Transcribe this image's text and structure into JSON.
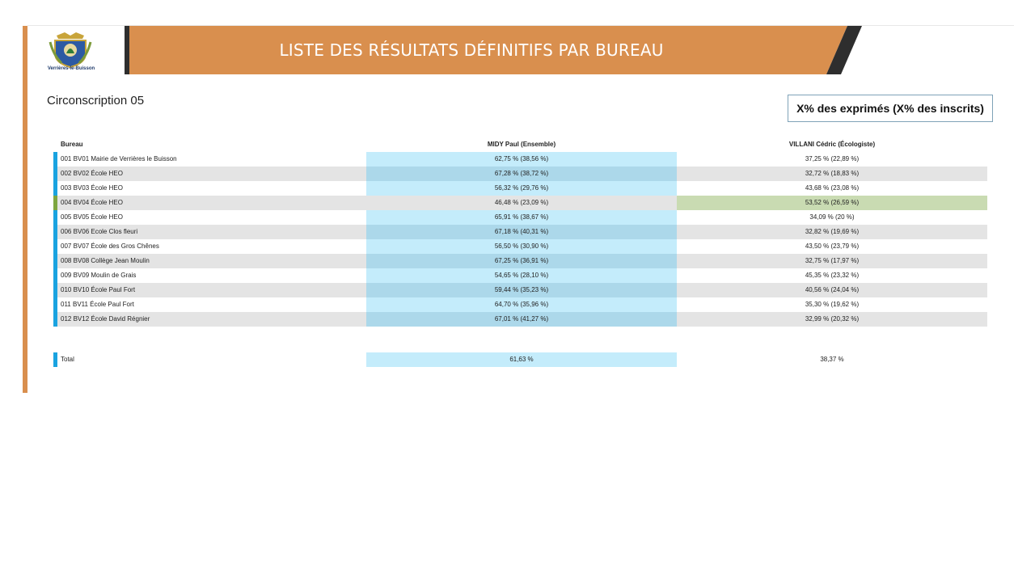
{
  "logo": {
    "caption": "Verrières-le-Buisson"
  },
  "banner": {
    "title": "LISTE DES RÉSULTATS DÉFINITIFS PAR BUREAU"
  },
  "circonscription": "Circonscription 05",
  "legend": "X% des exprimés (X% des inscrits)",
  "colors": {
    "accent_orange": "#D98F4E",
    "midy_blue": "#C4ECFB",
    "villani_green": "#C9DBB2",
    "row_accent": "#1AA3E0"
  },
  "table": {
    "headers": {
      "bureau": "Bureau",
      "midy": "MIDY Paul (Ensemble)",
      "villani": "VILLANI Cédric (Écologiste)"
    },
    "rows": [
      {
        "bureau": "001 BV01 Mairie de Verrières le Buisson",
        "midy": "62,75 % (38,56 %)",
        "villani": "37,25 % (22,89 %)"
      },
      {
        "bureau": "002 BV02 École HEO",
        "midy": "67,28 % (38,72 %)",
        "villani": "32,72 % (18,83 %)"
      },
      {
        "bureau": "003 BV03 École HEO",
        "midy": "56,32 % (29,76 %)",
        "villani": "43,68 % (23,08 %)"
      },
      {
        "bureau": "004 BV04 École HEO",
        "midy": "46,48 % (23,09 %)",
        "villani": "53,52 % (26,59 %)"
      },
      {
        "bureau": "005 BV05 École HEO",
        "midy": "65,91 % (38,67 %)",
        "villani": "34,09 % (20 %)"
      },
      {
        "bureau": "006 BV06 Ecole Clos fleuri",
        "midy": "67,18 % (40,31 %)",
        "villani": "32,82 % (19,69 %)"
      },
      {
        "bureau": "007 BV07 École des Gros Chênes",
        "midy": "56,50 % (30,90 %)",
        "villani": "43,50 % (23,79 %)"
      },
      {
        "bureau": "008 BV08 Collège Jean Moulin",
        "midy": "67,25 % (36,91 %)",
        "villani": "32,75 % (17,97 %)"
      },
      {
        "bureau": "009 BV09 Moulin de Grais",
        "midy": "54,65 % (28,10 %)",
        "villani": "45,35 % (23,32 %)"
      },
      {
        "bureau": "010 BV10 École Paul Fort",
        "midy": "59,44 % (35,23 %)",
        "villani": "40,56 % (24,04 %)"
      },
      {
        "bureau": "011 BV11 École Paul Fort",
        "midy": "64,70 % (35,96 %)",
        "villani": "35,30 % (19,62 %)"
      },
      {
        "bureau": "012 BV12 École David Régnier",
        "midy": "67,01 % (41,27 %)",
        "villani": "32,99 % (20,32 %)"
      }
    ],
    "total": {
      "bureau": "Total",
      "midy": "61,63 %",
      "villani": "38,37 %"
    }
  }
}
